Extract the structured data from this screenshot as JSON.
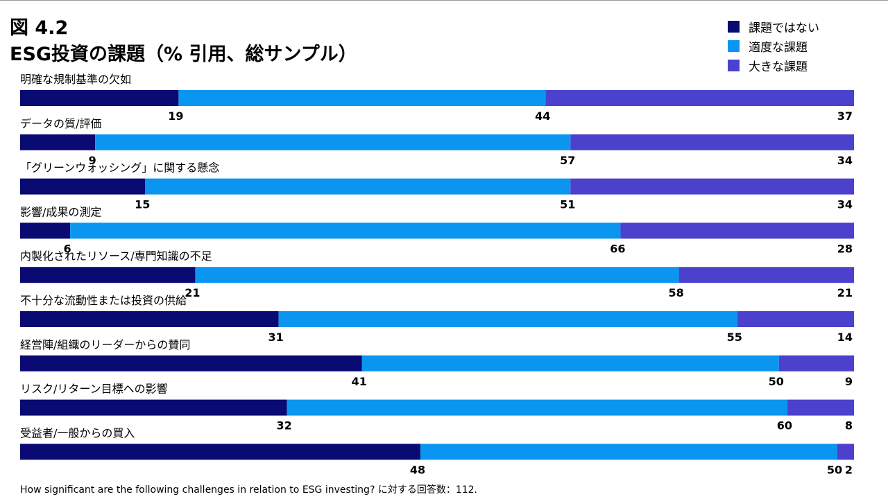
{
  "figure_number": "図 4.2",
  "title": "ESG投資の課題（% 引用、総サンプル）",
  "footnote": "How significant are the following challenges in relation to ESG investing? に対する回答数：112.",
  "legend": [
    {
      "label": "課題ではない",
      "color": "#0a0a73"
    },
    {
      "label": "適度な課題",
      "color": "#0a96f0"
    },
    {
      "label": "大きな課題",
      "color": "#4b41cd"
    }
  ],
  "chart_data": {
    "type": "bar",
    "orientation": "horizontal-stacked-100",
    "title": "ESG投資の課題（% 引用、総サンプル）",
    "series_names": [
      "課題ではない",
      "適度な課題",
      "大きな課題"
    ],
    "categories": [
      "明確な規制基準の欠如",
      "データの質/評価",
      "「グリーンウォッシング」に関する懸念",
      "影響/成果の測定",
      "内製化されたリソース/専門知識の不足",
      "不十分な流動性または投資の供給",
      "経営陣/組織のリーダーからの賛同",
      "リスク/リターン目標への影響",
      "受益者/一般からの買入"
    ],
    "series": [
      {
        "name": "課題ではない",
        "values": [
          19,
          9,
          15,
          6,
          21,
          31,
          41,
          32,
          48
        ]
      },
      {
        "name": "適度な課題",
        "values": [
          44,
          57,
          51,
          66,
          58,
          55,
          50,
          60,
          50
        ]
      },
      {
        "name": "大きな課題",
        "values": [
          37,
          34,
          34,
          28,
          21,
          14,
          9,
          8,
          2
        ]
      }
    ],
    "xlim": [
      0,
      100
    ],
    "legend_position": "top-right"
  }
}
